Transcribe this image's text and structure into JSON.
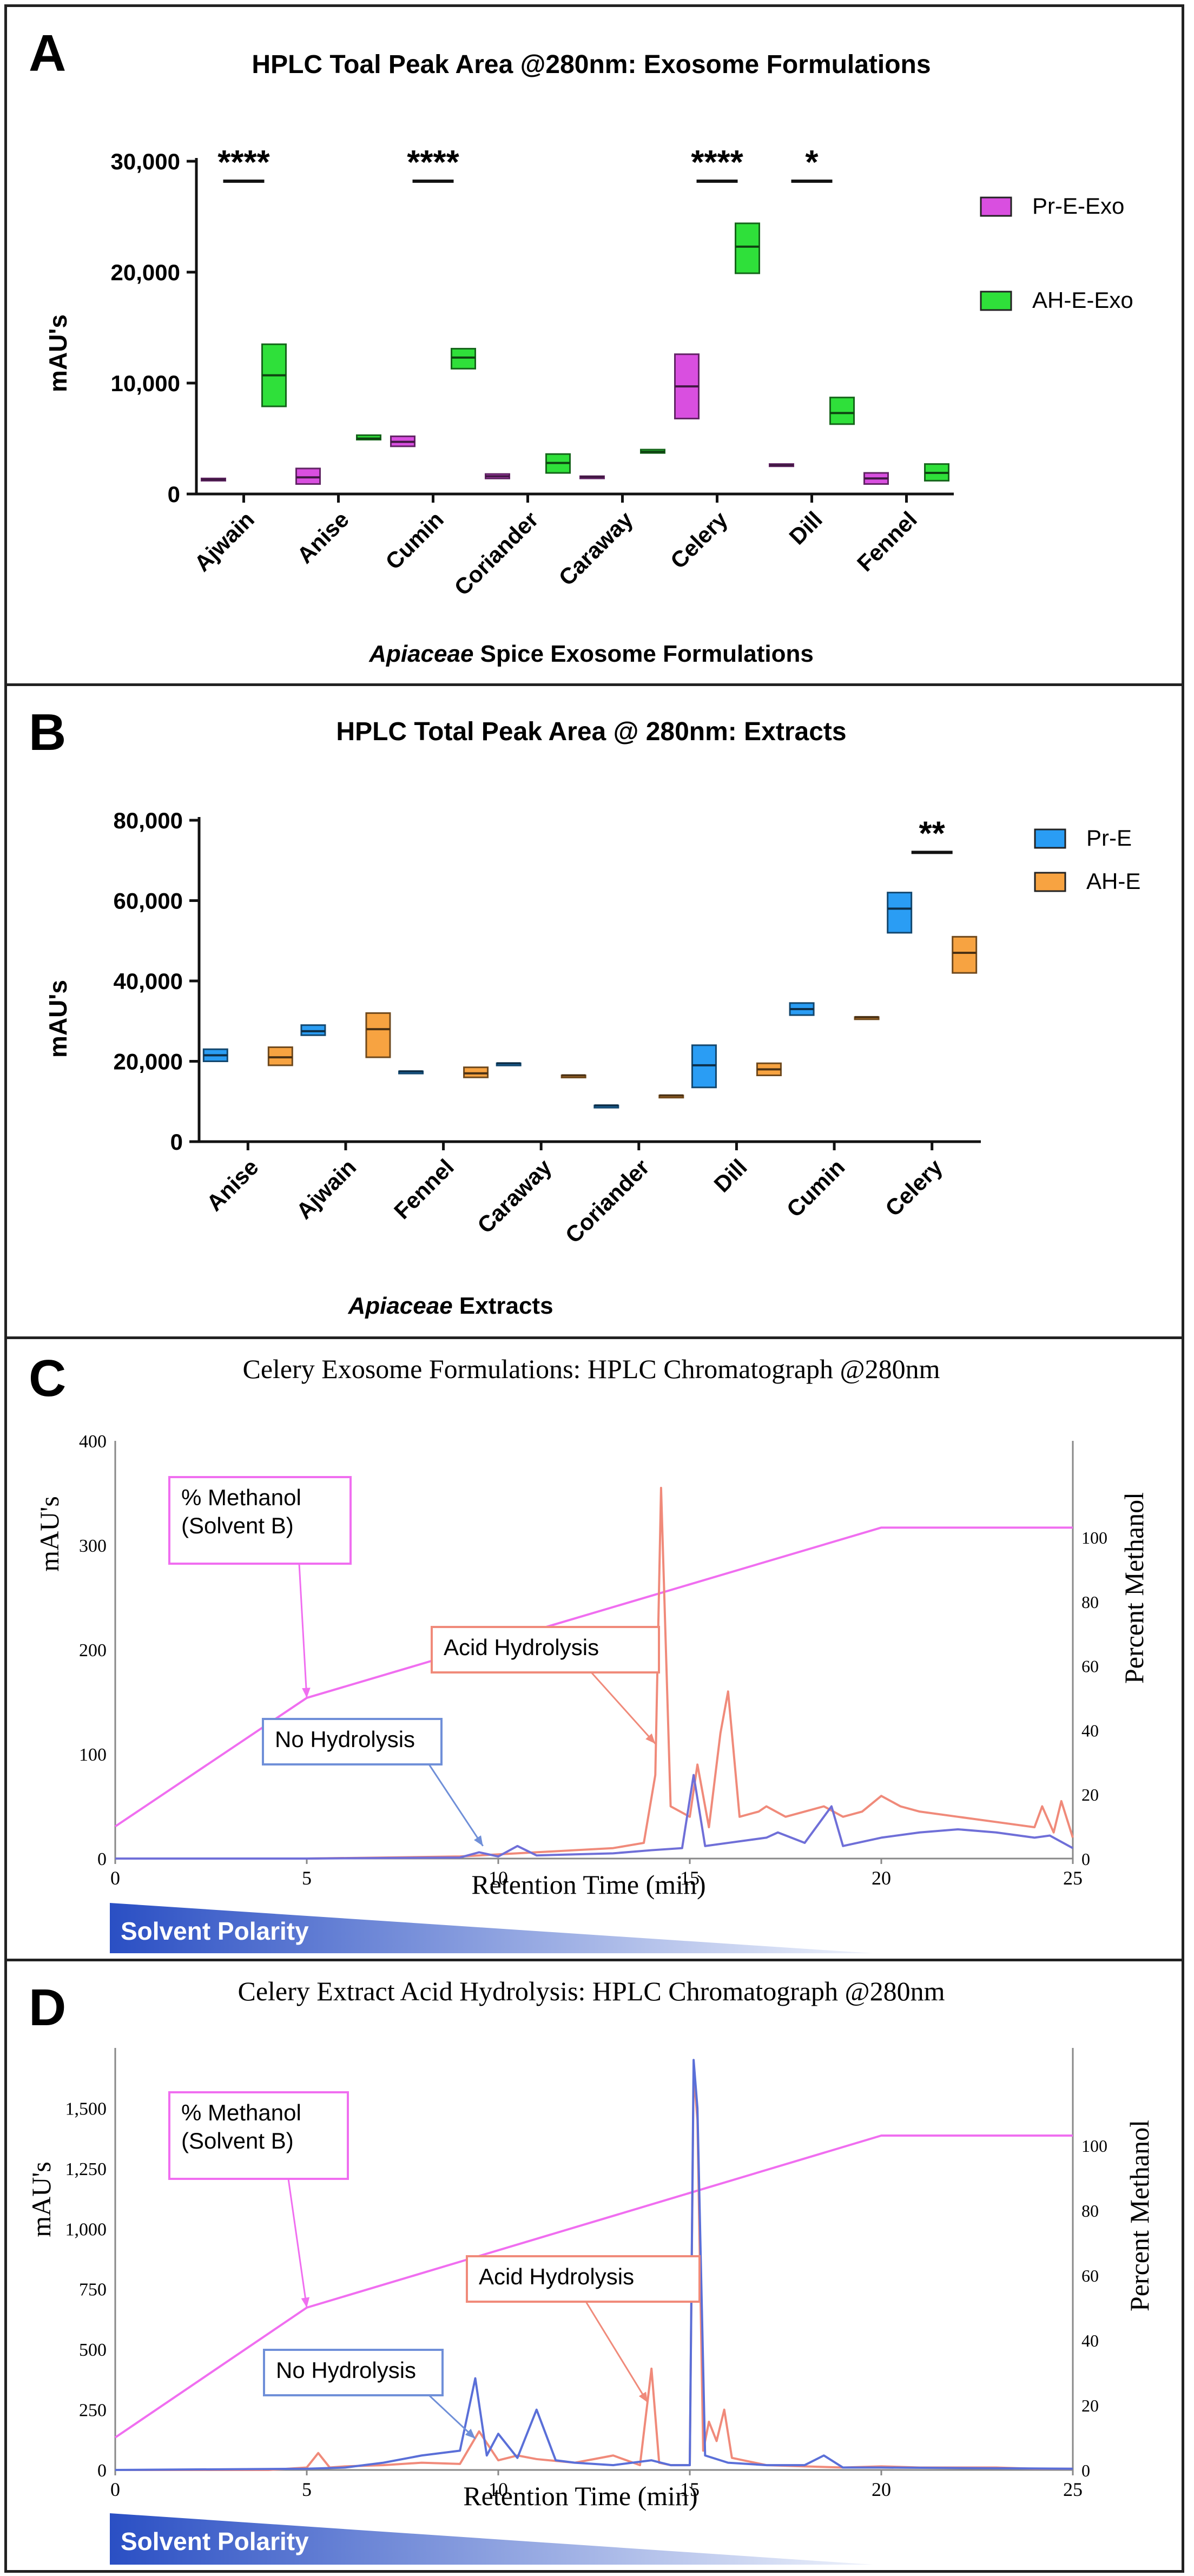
{
  "chart_data": [
    {
      "panel": "A",
      "type": "box",
      "title": "HPLC Toal Peak  Area @280nm: Exosome Formulations",
      "xlabel_italic": "Apiaceae",
      "xlabel_rest": " Spice Exosome Formulations",
      "ylabel": "mAU's",
      "ylim": [
        0,
        30000
      ],
      "yticks": [
        0,
        10000,
        20000,
        30000
      ],
      "ytick_labels": [
        "0",
        "10,000",
        "20,000",
        "30,000"
      ],
      "categories": [
        "Ajwain",
        "Anise",
        "Cumin",
        "Coriander",
        "Caraway",
        "Celery",
        "Dill",
        "Fennel"
      ],
      "legend_position": "right",
      "series": [
        {
          "name": "Pr-E-Exo",
          "color": "#d94fe0",
          "boxes": [
            [
              1200,
              1300,
              1400
            ],
            [
              900,
              1500,
              2300
            ],
            [
              4300,
              4700,
              5200
            ],
            [
              1400,
              1600,
              1800
            ],
            [
              1500,
              1550,
              1600
            ],
            [
              6800,
              9700,
              12600
            ],
            [
              2500,
              2600,
              2700
            ],
            [
              900,
              1400,
              1900
            ]
          ]
        },
        {
          "name": "AH-E-Exo",
          "color": "#2fe03a",
          "boxes": [
            [
              7900,
              10700,
              13500
            ],
            [
              4900,
              5000,
              5300
            ],
            [
              11300,
              12300,
              13100
            ],
            [
              1900,
              2800,
              3600
            ],
            [
              3700,
              3800,
              4000
            ],
            [
              19900,
              22300,
              24400
            ],
            [
              6300,
              7300,
              8700
            ],
            [
              1200,
              1900,
              2700
            ]
          ]
        }
      ],
      "significance": [
        {
          "category": "Ajwain",
          "label": "****",
          "y": 28200
        },
        {
          "category": "Cumin",
          "label": "****",
          "y": 28200
        },
        {
          "category": "Celery",
          "label": "****",
          "y": 28200
        },
        {
          "category": "Dill",
          "label": "*",
          "y": 28200
        }
      ]
    },
    {
      "panel": "B",
      "type": "box",
      "title": "HPLC Total Peak Area @ 280nm: Extracts",
      "xlabel_italic": "Apiaceae",
      "xlabel_rest": " Extracts",
      "ylabel": "mAU's",
      "ylim": [
        0,
        80000
      ],
      "yticks": [
        0,
        20000,
        40000,
        60000,
        80000
      ],
      "ytick_labels": [
        "0",
        "20,000",
        "40,000",
        "60,000",
        "80,000"
      ],
      "categories": [
        "Anise",
        "Ajwain",
        "Fennel",
        "Caraway",
        "Coriander",
        "Dill",
        "Cumin",
        "Celery"
      ],
      "legend_position": "right",
      "series": [
        {
          "name": "Pr-E",
          "color": "#2a9df4",
          "boxes": [
            [
              20000,
              21500,
              23000
            ],
            [
              26500,
              27500,
              29000
            ],
            [
              17500,
              17500,
              17500
            ],
            [
              19500,
              19500,
              19500
            ],
            [
              9000,
              9000,
              9000
            ],
            [
              13500,
              19000,
              24000
            ],
            [
              31500,
              33000,
              34500
            ],
            [
              52000,
              58000,
              62000
            ]
          ]
        },
        {
          "name": "AH-E",
          "color": "#f7a341",
          "boxes": [
            [
              19000,
              21000,
              23500
            ],
            [
              21000,
              28000,
              32000
            ],
            [
              16000,
              17000,
              18500
            ],
            [
              16500,
              16500,
              16500
            ],
            [
              11500,
              11500,
              11500
            ],
            [
              16500,
              18000,
              19500
            ],
            [
              31000,
              31000,
              31000
            ],
            [
              42000,
              47000,
              51000
            ]
          ]
        }
      ],
      "significance": [
        {
          "category": "Celery",
          "label": "**",
          "y": 72000
        }
      ]
    },
    {
      "panel": "C",
      "type": "line",
      "title": "Celery Exosome Formulations: HPLC Chromatograph @280nm",
      "xlabel": "Retention Time (min)",
      "ylabel": "mAU's",
      "y2label": "Percent Methanol",
      "xlim": [
        0,
        25
      ],
      "xticks": [
        0,
        5,
        10,
        15,
        20,
        25
      ],
      "ylim": [
        0,
        400
      ],
      "yticks": [
        0,
        100,
        200,
        300,
        400
      ],
      "y2lim": [
        0,
        130
      ],
      "y2ticks": [
        0,
        20,
        40,
        60,
        80,
        100
      ],
      "series": [
        {
          "name": "% Methanol (Solvent B)",
          "axis": "y2",
          "color": "#f06ef0",
          "x": [
            0,
            5,
            20,
            25
          ],
          "y": [
            10,
            50,
            103,
            103
          ]
        },
        {
          "name": "Acid Hydrolysis",
          "axis": "y",
          "color": "#f08a7a",
          "x": [
            0,
            5,
            9,
            10,
            11,
            12,
            13,
            13.8,
            14.1,
            14.25,
            14.5,
            15,
            15.2,
            15.5,
            15.8,
            16,
            16.3,
            16.8,
            17,
            17.5,
            18,
            18.5,
            19,
            19.5,
            20,
            20.5,
            21,
            22,
            23,
            24,
            24.2,
            24.5,
            24.7,
            25
          ],
          "y": [
            0,
            0,
            2,
            4,
            6,
            8,
            10,
            15,
            80,
            355,
            50,
            40,
            90,
            30,
            120,
            160,
            40,
            45,
            50,
            40,
            45,
            50,
            40,
            45,
            60,
            50,
            45,
            40,
            35,
            30,
            50,
            25,
            55,
            20
          ]
        },
        {
          "name": "No Hydrolysis",
          "axis": "y",
          "color": "#6f6fd8",
          "x": [
            0,
            5,
            9,
            9.5,
            10,
            10.5,
            11,
            12,
            13,
            14,
            14.8,
            15.1,
            15.4,
            16,
            17,
            17.3,
            18,
            18.7,
            19,
            20,
            21,
            22,
            23,
            24,
            24.4,
            25
          ],
          "y": [
            0,
            0,
            1,
            6,
            2,
            12,
            3,
            4,
            5,
            8,
            10,
            80,
            12,
            15,
            20,
            25,
            15,
            50,
            12,
            20,
            25,
            28,
            25,
            20,
            22,
            10
          ]
        }
      ],
      "annotations": [
        {
          "label_lines": [
            "% Methanol",
            "(Solvent B)"
          ],
          "color": "#f06ef0"
        },
        {
          "label_lines": [
            "Acid Hydrolysis"
          ],
          "color": "#f08a7a"
        },
        {
          "label_lines": [
            "No Hydrolysis"
          ],
          "color": "#6f8fd8"
        }
      ],
      "gradient_label": "Solvent Polarity"
    },
    {
      "panel": "D",
      "type": "line",
      "title": "Celery Extract Acid Hydrolysis: HPLC Chromatograph @280nm",
      "xlabel": "Retention Time (min)",
      "ylabel": "mAU's",
      "y2label": "Percent Methanol",
      "xlim": [
        0,
        25
      ],
      "xticks": [
        0,
        5,
        10,
        15,
        20,
        25
      ],
      "ylim": [
        0,
        1750
      ],
      "yticks": [
        0,
        250,
        500,
        750,
        1000,
        1250,
        1500
      ],
      "ytick_labels": [
        "0",
        "250",
        "500",
        "750",
        "1,000",
        "1,250",
        "1,500"
      ],
      "y2lim": [
        0,
        130
      ],
      "y2ticks": [
        0,
        20,
        40,
        60,
        80,
        100
      ],
      "series": [
        {
          "name": "% Methanol (Solvent B)",
          "axis": "y2",
          "color": "#f06ef0",
          "x": [
            0,
            5,
            20,
            25
          ],
          "y": [
            10,
            50,
            103,
            103
          ]
        },
        {
          "name": "Acid Hydrolysis",
          "axis": "y",
          "color": "#f08a7a",
          "x": [
            0,
            4,
            5,
            5.3,
            5.6,
            6,
            7,
            8,
            9,
            9.5,
            10,
            10.5,
            11,
            12,
            13,
            13.7,
            14,
            14.2,
            14.5,
            15,
            15.1,
            15.2,
            15.35,
            15.5,
            15.7,
            15.9,
            16.1,
            16.4,
            17,
            18,
            19,
            20,
            21,
            22,
            23,
            24,
            25
          ],
          "y": [
            0,
            0,
            10,
            70,
            10,
            15,
            20,
            30,
            25,
            160,
            40,
            60,
            45,
            30,
            60,
            20,
            420,
            30,
            20,
            20,
            1650,
            1450,
            80,
            200,
            120,
            250,
            50,
            40,
            20,
            15,
            10,
            15,
            10,
            10,
            10,
            5,
            5
          ]
        },
        {
          "name": "No Hydrolysis",
          "axis": "y",
          "color": "#5a6fd8",
          "x": [
            0,
            5,
            6,
            7,
            8,
            9,
            9.4,
            9.7,
            10,
            10.5,
            11,
            11.5,
            12,
            13,
            14,
            14.5,
            15,
            15.1,
            15.2,
            15.4,
            16,
            17,
            18,
            18.5,
            19,
            20,
            25
          ],
          "y": [
            0,
            5,
            10,
            30,
            60,
            80,
            380,
            60,
            150,
            50,
            250,
            40,
            30,
            20,
            40,
            20,
            20,
            1700,
            1500,
            60,
            30,
            20,
            20,
            60,
            10,
            10,
            5
          ]
        }
      ],
      "annotations": [
        {
          "label_lines": [
            "% Methanol",
            "(Solvent B)"
          ],
          "color": "#f06ef0"
        },
        {
          "label_lines": [
            "Acid Hydrolysis"
          ],
          "color": "#f08a7a"
        },
        {
          "label_lines": [
            "No Hydrolysis"
          ],
          "color": "#6f8fd8"
        }
      ],
      "gradient_label": "Solvent Polarity"
    }
  ],
  "panel_letters": [
    "A",
    "B",
    "C",
    "D"
  ]
}
